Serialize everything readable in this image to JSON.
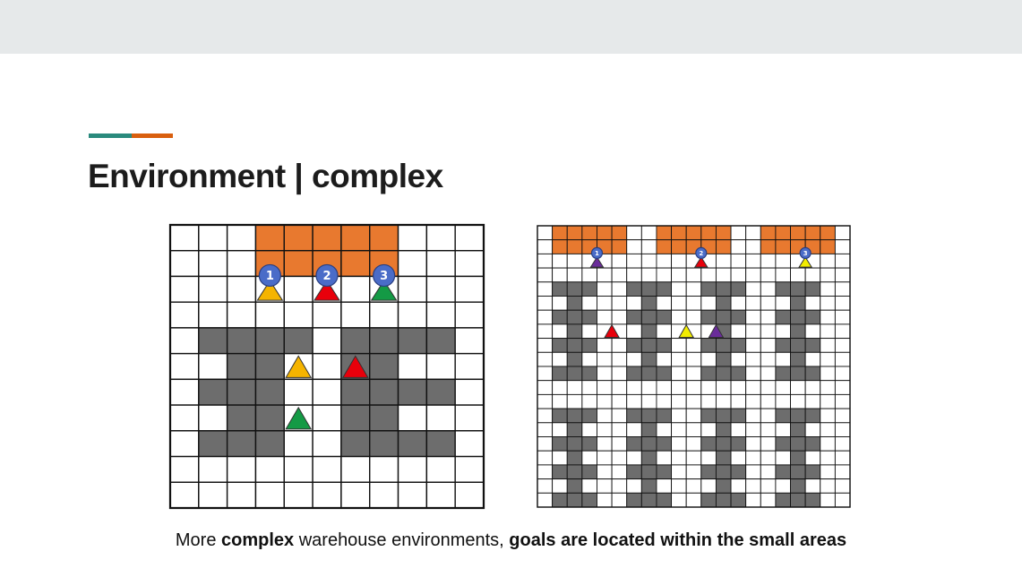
{
  "slide": {
    "title": "Environment | complex",
    "caption": {
      "part1": "More ",
      "part2": "complex",
      "part3": " warehouse environments, ",
      "part4": "goals are located within the small areas"
    }
  },
  "colors": {
    "header_bar": "#e6e9ea",
    "accent_teal": "#2a8a7d",
    "accent_orange": "#d95f0e",
    "goal_area": "#e8792f",
    "shelf": "#6d6d6d",
    "free_cell": "#ffffff",
    "grid_line": "#111111",
    "agent_badge": "#4a6cc8",
    "agent_orange": "#f5b400",
    "agent_red": "#e8000b",
    "agent_green": "#149a45",
    "agent_purple": "#6a2c9a",
    "agent_yellow": "#f2ec00"
  },
  "small_env": {
    "badges": [
      "1",
      "2",
      "3"
    ]
  },
  "large_env": {
    "badges": [
      "1",
      "2",
      "3"
    ]
  }
}
